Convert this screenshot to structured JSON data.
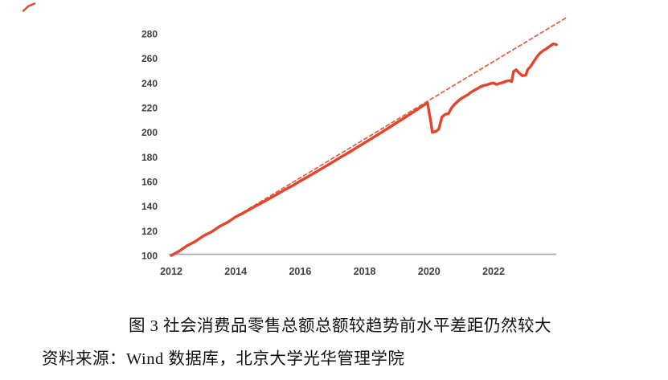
{
  "figure": {
    "caption": "图 3 社会消费品零售总额总额较趋势前水平差距仍然较大",
    "source": "资料来源：Wind 数据库，北京大学光华管理学院"
  },
  "chart_data": {
    "type": "line",
    "title": "图 3 社会消费品零售总额总额较趋势前水平差距仍然较大",
    "xlabel": "",
    "ylabel": "",
    "xticks": [
      2012,
      2014,
      2016,
      2018,
      2020,
      2022
    ],
    "yticks": [
      100,
      120,
      140,
      160,
      180,
      200,
      220,
      240,
      260,
      280
    ],
    "xlim": [
      2011.9,
      2024.4
    ],
    "ylim": [
      100,
      295
    ],
    "grid": false,
    "legend_position": "none",
    "index_base": "2012 = 100",
    "colors": {
      "line": "#e8432a",
      "trend": "#ea5c3e",
      "axis": "#a9a9a9",
      "tick_text": "#3f3f3f"
    },
    "series": [
      {
        "id": "trend",
        "style": "dashed",
        "color": "#ea5c3e",
        "width": 1.7,
        "dash": "4.5 3.5",
        "points": [
          [
            2012.0,
            100
          ],
          [
            2024.25,
            292.9
          ]
        ]
      },
      {
        "id": "actual",
        "style": "solid",
        "color": "#e8432a",
        "width": 3.4,
        "dash": "",
        "points": [
          [
            2012.0,
            100
          ],
          [
            2012.25,
            103.6
          ],
          [
            2012.5,
            108.1
          ],
          [
            2012.75,
            111.5
          ],
          [
            2013.0,
            115.9
          ],
          [
            2013.25,
            119.2
          ],
          [
            2013.5,
            123.6
          ],
          [
            2013.75,
            127.0
          ],
          [
            2014.0,
            131.4
          ],
          [
            2014.25,
            134.7
          ],
          [
            2014.5,
            138.4
          ],
          [
            2014.75,
            141.9
          ],
          [
            2015.0,
            145.6
          ],
          [
            2015.25,
            149.2
          ],
          [
            2015.5,
            153.0
          ],
          [
            2015.75,
            156.5
          ],
          [
            2016.0,
            160.4
          ],
          [
            2016.25,
            164.1
          ],
          [
            2016.5,
            167.9
          ],
          [
            2016.75,
            171.8
          ],
          [
            2017.0,
            175.7
          ],
          [
            2017.25,
            179.7
          ],
          [
            2017.5,
            183.5
          ],
          [
            2017.75,
            187.5
          ],
          [
            2018.0,
            191.5
          ],
          [
            2018.25,
            195.5
          ],
          [
            2018.5,
            199.6
          ],
          [
            2018.75,
            203.7
          ],
          [
            2019.0,
            207.9
          ],
          [
            2019.25,
            212.0
          ],
          [
            2019.5,
            216.3
          ],
          [
            2019.75,
            220.6
          ],
          [
            2019.95,
            224.0
          ],
          [
            2020.05,
            209.0
          ],
          [
            2020.1,
            200.0
          ],
          [
            2020.2,
            200.6
          ],
          [
            2020.3,
            202.5
          ],
          [
            2020.4,
            212.5
          ],
          [
            2020.5,
            214.5
          ],
          [
            2020.6,
            215.2
          ],
          [
            2020.7,
            220.0
          ],
          [
            2020.8,
            223.0
          ],
          [
            2020.9,
            225.5
          ],
          [
            2021.0,
            227.5
          ],
          [
            2021.1,
            229.0
          ],
          [
            2021.2,
            230.5
          ],
          [
            2021.3,
            232.5
          ],
          [
            2021.4,
            234.0
          ],
          [
            2021.5,
            235.5
          ],
          [
            2021.6,
            237.0
          ],
          [
            2021.7,
            238.0
          ],
          [
            2021.8,
            238.6
          ],
          [
            2021.9,
            239.5
          ],
          [
            2022.0,
            240.0
          ],
          [
            2022.1,
            238.8
          ],
          [
            2022.2,
            239.8
          ],
          [
            2022.3,
            240.5
          ],
          [
            2022.4,
            241.5
          ],
          [
            2022.5,
            242.0
          ],
          [
            2022.56,
            241.2
          ],
          [
            2022.62,
            249.5
          ],
          [
            2022.7,
            250.8
          ],
          [
            2022.8,
            248.0
          ],
          [
            2022.9,
            245.8
          ],
          [
            2023.0,
            246.5
          ],
          [
            2023.06,
            251.0
          ],
          [
            2023.15,
            253.5
          ],
          [
            2023.25,
            257.5
          ],
          [
            2023.35,
            261.5
          ],
          [
            2023.45,
            264.5
          ],
          [
            2023.55,
            266.5
          ],
          [
            2023.65,
            268.0
          ],
          [
            2023.75,
            270.0
          ],
          [
            2023.85,
            271.8
          ],
          [
            2023.95,
            271.2
          ]
        ]
      }
    ]
  }
}
